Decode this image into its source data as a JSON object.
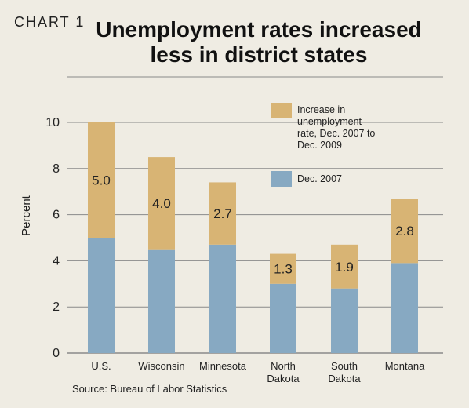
{
  "label": "CHART 1",
  "title_lines": [
    "Unemployment rates increased",
    "less in district states"
  ],
  "source": "Source: Bureau of Labor Statistics",
  "colors": {
    "base": "#87a9c2",
    "increase": "#d8b474",
    "grid": "#8a8a8a",
    "background": "#efece3"
  },
  "chart_data": {
    "type": "bar",
    "stacked": true,
    "categories": [
      [
        "U.S."
      ],
      [
        "Wisconsin"
      ],
      [
        "Minnesota"
      ],
      [
        "North",
        "Dakota"
      ],
      [
        "South",
        "Dakota"
      ],
      [
        "Montana"
      ]
    ],
    "series": [
      {
        "name": "Dec. 2007",
        "values": [
          5.0,
          4.5,
          4.7,
          3.0,
          2.8,
          3.9
        ]
      },
      {
        "name": "Increase in unemployment rate, Dec. 2007 to Dec. 2009",
        "values": [
          5.0,
          4.0,
          2.7,
          1.3,
          1.9,
          2.8
        ]
      }
    ],
    "data_labels": [
      "5.0",
      "4.0",
      "2.7",
      "1.3",
      "1.9",
      "2.8"
    ],
    "ylabel": "Percent",
    "xlabel": "",
    "ylim": [
      0,
      12
    ],
    "yticks": [
      0,
      2,
      4,
      6,
      8,
      10
    ],
    "grid": true,
    "legend": {
      "position": "top-right",
      "entries": [
        {
          "lines": [
            "Increase in",
            "unemployment",
            "rate, Dec. 2007 to",
            "Dec. 2009"
          ]
        },
        {
          "lines": [
            "Dec. 2007"
          ]
        }
      ]
    }
  }
}
